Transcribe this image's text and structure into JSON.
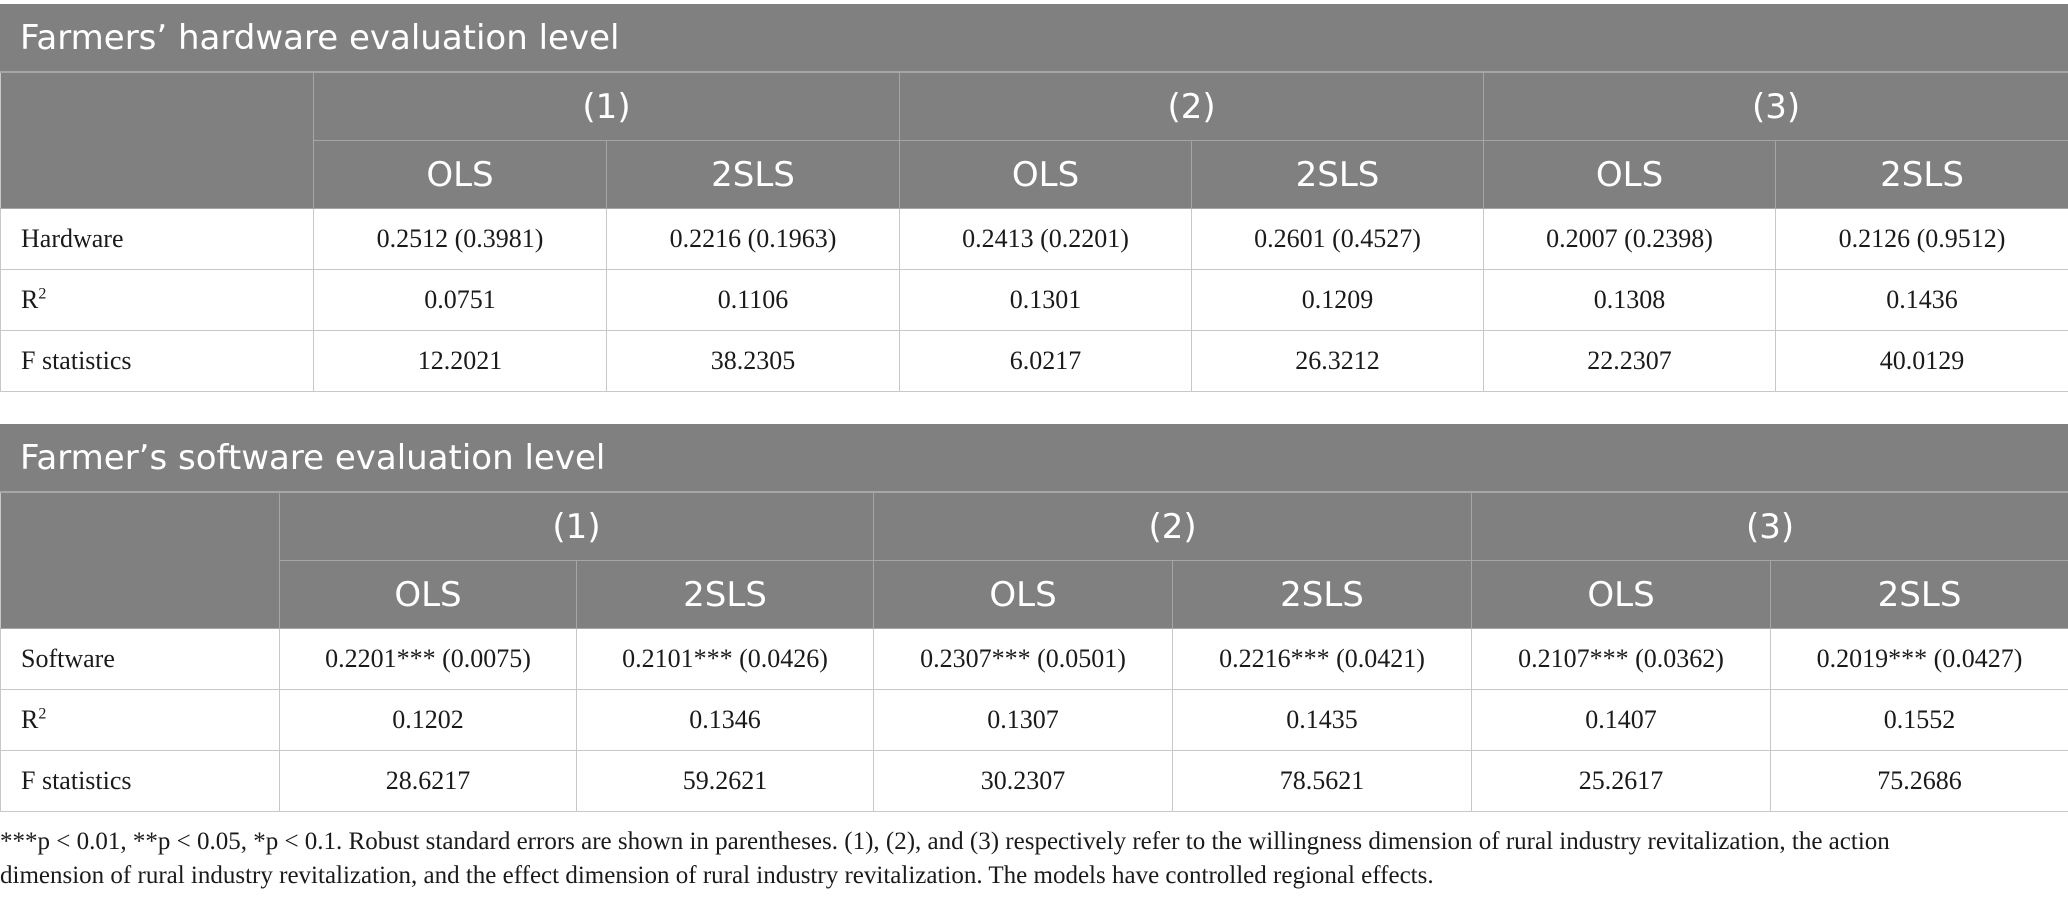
{
  "hardware_table": {
    "title": "Farmers’ hardware evaluation level",
    "groups": [
      "(1)",
      "(2)",
      "(3)"
    ],
    "methods": [
      "OLS",
      "2SLS",
      "OLS",
      "2SLS",
      "OLS",
      "2SLS"
    ],
    "rows": [
      {
        "label": "Hardware",
        "cells": [
          "0.2512 (0.3981)",
          "0.2216 (0.1963)",
          "0.2413 (0.2201)",
          "0.2601 (0.4527)",
          "0.2007 (0.2398)",
          "0.2126 (0.9512)"
        ]
      },
      {
        "label": "R",
        "label_sup": "2",
        "cells": [
          "0.0751",
          "0.1106",
          "0.1301",
          "0.1209",
          "0.1308",
          "0.1436"
        ]
      },
      {
        "label": "F statistics",
        "cells": [
          "12.2021",
          "38.2305",
          "6.0217",
          "26.3212",
          "22.2307",
          "40.0129"
        ]
      }
    ]
  },
  "software_table": {
    "title": "Farmer’s software evaluation level",
    "groups": [
      "(1)",
      "(2)",
      "(3)"
    ],
    "methods": [
      "OLS",
      "2SLS",
      "OLS",
      "2SLS",
      "OLS",
      "2SLS"
    ],
    "rows": [
      {
        "label": "Software",
        "cells": [
          "0.2201*** (0.0075)",
          "0.2101*** (0.0426)",
          "0.2307*** (0.0501)",
          "0.2216*** (0.0421)",
          "0.2107*** (0.0362)",
          "0.2019*** (0.0427)"
        ]
      },
      {
        "label": "R",
        "label_sup": "2",
        "cells": [
          "0.1202",
          "0.1346",
          "0.1307",
          "0.1435",
          "0.1407",
          "0.1552"
        ]
      },
      {
        "label": "F statistics",
        "cells": [
          "28.6217",
          "59.2621",
          "30.2307",
          "78.5621",
          "25.2617",
          "75.2686"
        ]
      }
    ]
  },
  "footnote": {
    "line1": "***p < 0.01, **p < 0.05, *p < 0.1. Robust standard errors are shown in parentheses. (1), (2), and (3) respectively refer to the willingness dimension of rural industry revitalization, the action",
    "line2": "dimension of rural industry revitalization, and the effect dimension of rural industry revitalization. The models have controlled regional effects."
  }
}
